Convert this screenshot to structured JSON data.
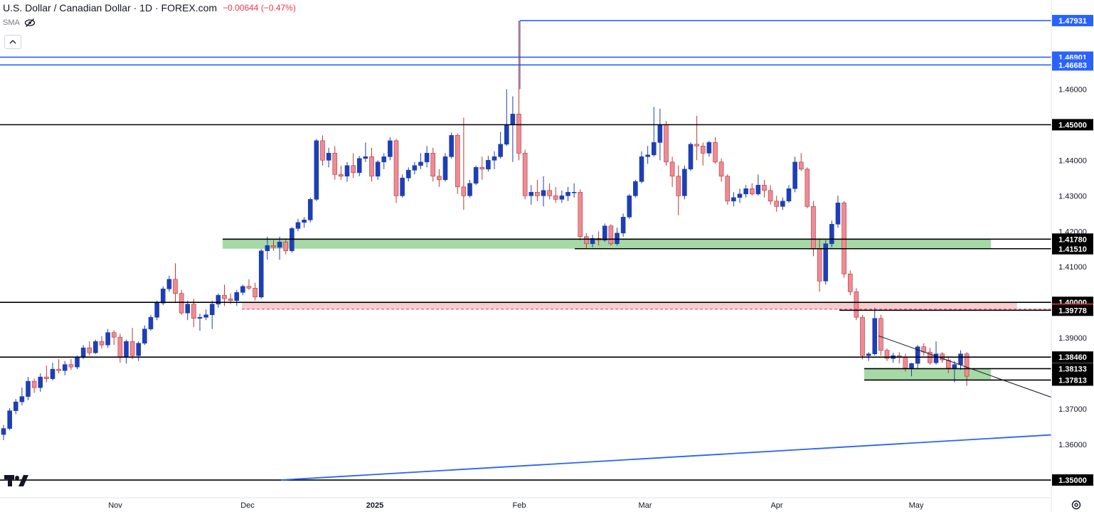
{
  "header": {
    "title": "U.S. Dollar / Canadian Dollar · 1D · FOREX.com",
    "change": "−0.00644 (−0.47%)",
    "indicator": "SMA",
    "collapse_icon": "chevron-up-icon",
    "eye_icon": "eye-off-icon"
  },
  "colors": {
    "up": "#1e3fb4",
    "down": "#f08a93",
    "support_zone": "#7fc97f",
    "resistance_zone": "#f4a4aa",
    "level_blue": "#2962ff",
    "level_black": "#000000",
    "label_red": "#f23645"
  },
  "chart_data": {
    "type": "candlestick",
    "symbol": "USDCAD",
    "timeframe": "1D",
    "ylim": [
      1.345,
      1.4815
    ],
    "x_tick_labels": [
      "Nov",
      "Dec",
      "2025",
      "Feb",
      "Mar",
      "Apr",
      "May"
    ],
    "y_tick_labels": [
      "1.46000",
      "1.44000",
      "1.43000",
      "1.42000",
      "1.41000",
      "1.39000",
      "1.37000",
      "1.36000"
    ],
    "y_ticks": [
      1.46,
      1.44,
      1.43,
      1.42,
      1.41,
      1.39,
      1.37,
      1.36
    ],
    "horizontal_levels": [
      {
        "label": "1.47931",
        "value": 1.47931,
        "color": "blue",
        "line": "solid"
      },
      {
        "label": "1.46901",
        "value": 1.46901,
        "color": "blue",
        "line": "solid"
      },
      {
        "label": "1.46683",
        "value": 1.46683,
        "color": "blue",
        "line": "solid"
      },
      {
        "label": "1.45000",
        "value": 1.45,
        "color": "black",
        "line": "solid"
      },
      {
        "label": "1.41780",
        "value": 1.4178,
        "color": "black",
        "line": "solid"
      },
      {
        "label": "1.41510",
        "value": 1.4151,
        "color": "black",
        "line": "solid"
      },
      {
        "label": "1.40000",
        "value": 1.4,
        "color": "black",
        "line": "solid"
      },
      {
        "label": "1.39808",
        "value": 1.39808,
        "color": "red",
        "line": "dashed"
      },
      {
        "label": "1.39778",
        "value": 1.39778,
        "color": "black",
        "line": "solid"
      },
      {
        "label": "1.38460",
        "value": 1.3846,
        "color": "black",
        "line": "solid"
      },
      {
        "label": "1.38133",
        "value": 1.38133,
        "color": "black",
        "line": "solid"
      },
      {
        "label": "1.37813",
        "value": 1.37813,
        "color": "black",
        "line": "solid"
      },
      {
        "label": "1.35000",
        "value": 1.35,
        "color": "black",
        "line": "solid"
      }
    ],
    "zones": [
      {
        "from": 1.4151,
        "to": 1.4178,
        "color": "green",
        "start": "late Nov",
        "end": "May"
      },
      {
        "from": 1.39808,
        "to": 1.4,
        "color": "red",
        "start": "late Nov",
        "end": "May"
      },
      {
        "from": 1.37813,
        "to": 1.38133,
        "color": "green",
        "start": "late Apr",
        "end": "May"
      }
    ],
    "trendlines": [
      {
        "name": "rising support",
        "color": "blue",
        "from": {
          "date": "Dec",
          "price": 1.35
        },
        "to": {
          "date": "May+",
          "price": 1.3627
        }
      },
      {
        "name": "falling wedge top",
        "color": "black",
        "from": {
          "date": "late Apr",
          "price": 1.3906
        },
        "to": {
          "date": "May+",
          "price": 1.3733
        }
      }
    ],
    "candles": [
      [
        1.3628,
        1.3655,
        1.3612,
        1.3645
      ],
      [
        1.3645,
        1.3702,
        1.364,
        1.3695
      ],
      [
        1.3695,
        1.3728,
        1.3685,
        1.372
      ],
      [
        1.372,
        1.376,
        1.371,
        1.3735
      ],
      [
        1.3735,
        1.379,
        1.3725,
        1.3778
      ],
      [
        1.3778,
        1.3785,
        1.3745,
        1.376
      ],
      [
        1.376,
        1.38,
        1.3748,
        1.379
      ],
      [
        1.379,
        1.3822,
        1.3775,
        1.3785
      ],
      [
        1.3785,
        1.383,
        1.378,
        1.3812
      ],
      [
        1.3812,
        1.384,
        1.38,
        1.3808
      ],
      [
        1.3808,
        1.3835,
        1.3795,
        1.3825
      ],
      [
        1.3825,
        1.384,
        1.381,
        1.3818
      ],
      [
        1.3818,
        1.385,
        1.3812,
        1.3845
      ],
      [
        1.3845,
        1.388,
        1.384,
        1.3872
      ],
      [
        1.3872,
        1.389,
        1.385,
        1.3858
      ],
      [
        1.3858,
        1.3895,
        1.3855,
        1.389
      ],
      [
        1.389,
        1.3905,
        1.387,
        1.388
      ],
      [
        1.388,
        1.3925,
        1.3872,
        1.3915
      ],
      [
        1.3915,
        1.3922,
        1.388,
        1.3902
      ],
      [
        1.3902,
        1.3912,
        1.383,
        1.3845
      ],
      [
        1.3845,
        1.3895,
        1.3828,
        1.389
      ],
      [
        1.389,
        1.3928,
        1.384,
        1.385
      ],
      [
        1.385,
        1.389,
        1.3835,
        1.3885
      ],
      [
        1.3885,
        1.3935,
        1.388,
        1.3925
      ],
      [
        1.3925,
        1.3965,
        1.392,
        1.3958
      ],
      [
        1.3958,
        1.4005,
        1.395,
        1.3998
      ],
      [
        1.3998,
        1.4045,
        1.3992,
        1.4038
      ],
      [
        1.4038,
        1.4075,
        1.403,
        1.4065
      ],
      [
        1.4065,
        1.411,
        1.4,
        1.4025
      ],
      [
        1.4025,
        1.4035,
        1.3965,
        1.397
      ],
      [
        1.397,
        1.4005,
        1.395,
        1.3995
      ],
      [
        1.3995,
        1.401,
        1.393,
        1.3955
      ],
      [
        1.3955,
        1.3968,
        1.392,
        1.3958
      ],
      [
        1.3958,
        1.398,
        1.395,
        1.3965
      ],
      [
        1.3965,
        1.4005,
        1.3925,
        1.3995
      ],
      [
        1.3995,
        1.4025,
        1.3985,
        1.402
      ],
      [
        1.402,
        1.405,
        1.399,
        1.401
      ],
      [
        1.401,
        1.4025,
        1.3995,
        1.4005
      ],
      [
        1.4005,
        1.4035,
        1.399,
        1.4028
      ],
      [
        1.4028,
        1.405,
        1.402,
        1.4045
      ],
      [
        1.4045,
        1.4065,
        1.4035,
        1.404
      ],
      [
        1.404,
        1.4055,
        1.4005,
        1.4015
      ],
      [
        1.4015,
        1.415,
        1.401,
        1.4145
      ],
      [
        1.4145,
        1.4185,
        1.412,
        1.416
      ],
      [
        1.416,
        1.4175,
        1.4145,
        1.4155
      ],
      [
        1.4155,
        1.4185,
        1.412,
        1.417
      ],
      [
        1.417,
        1.418,
        1.4135,
        1.4145
      ],
      [
        1.4145,
        1.4212,
        1.414,
        1.4208
      ],
      [
        1.4208,
        1.4235,
        1.42,
        1.4225
      ],
      [
        1.4225,
        1.424,
        1.421,
        1.4232
      ],
      [
        1.4232,
        1.4295,
        1.4225,
        1.429
      ],
      [
        1.429,
        1.446,
        1.4285,
        1.4455
      ],
      [
        1.4455,
        1.447,
        1.4385,
        1.44
      ],
      [
        1.44,
        1.4435,
        1.438,
        1.442
      ],
      [
        1.442,
        1.444,
        1.4345,
        1.436
      ],
      [
        1.436,
        1.4385,
        1.4345,
        1.4355
      ],
      [
        1.4355,
        1.4395,
        1.434,
        1.4385
      ],
      [
        1.4385,
        1.442,
        1.435,
        1.4365
      ],
      [
        1.4365,
        1.4412,
        1.4355,
        1.4405
      ],
      [
        1.4405,
        1.445,
        1.4395,
        1.441
      ],
      [
        1.441,
        1.4435,
        1.434,
        1.4355
      ],
      [
        1.4355,
        1.44,
        1.4345,
        1.4395
      ],
      [
        1.4395,
        1.442,
        1.4375,
        1.441
      ],
      [
        1.441,
        1.4465,
        1.44,
        1.4455
      ],
      [
        1.4455,
        1.446,
        1.428,
        1.43
      ],
      [
        1.43,
        1.436,
        1.4295,
        1.435
      ],
      [
        1.435,
        1.438,
        1.434,
        1.4372
      ],
      [
        1.4372,
        1.4395,
        1.436,
        1.4385
      ],
      [
        1.4385,
        1.442,
        1.4375,
        1.4395
      ],
      [
        1.4395,
        1.444,
        1.438,
        1.442
      ],
      [
        1.442,
        1.4435,
        1.434,
        1.4355
      ],
      [
        1.4355,
        1.4375,
        1.4325,
        1.4345
      ],
      [
        1.4345,
        1.442,
        1.434,
        1.441
      ],
      [
        1.441,
        1.4478,
        1.4405,
        1.447
      ],
      [
        1.447,
        1.4475,
        1.4305,
        1.4325
      ],
      [
        1.4325,
        1.452,
        1.426,
        1.43
      ],
      [
        1.43,
        1.4345,
        1.4295,
        1.4335
      ],
      [
        1.4335,
        1.4385,
        1.433,
        1.438
      ],
      [
        1.438,
        1.441,
        1.4345,
        1.4375
      ],
      [
        1.4375,
        1.4412,
        1.4368,
        1.44
      ],
      [
        1.44,
        1.4425,
        1.4375,
        1.441
      ],
      [
        1.441,
        1.448,
        1.4405,
        1.4445
      ],
      [
        1.4445,
        1.46,
        1.444,
        1.45
      ],
      [
        1.45,
        1.458,
        1.4395,
        1.453
      ],
      [
        1.453,
        1.4793,
        1.44,
        1.442
      ],
      [
        1.442,
        1.443,
        1.429,
        1.43
      ],
      [
        1.43,
        1.433,
        1.4275,
        1.431
      ],
      [
        1.431,
        1.4345,
        1.4285,
        1.43
      ],
      [
        1.43,
        1.4355,
        1.427,
        1.4315
      ],
      [
        1.4315,
        1.4335,
        1.429,
        1.43
      ],
      [
        1.43,
        1.4325,
        1.428,
        1.429
      ],
      [
        1.429,
        1.4315,
        1.428,
        1.43
      ],
      [
        1.43,
        1.4325,
        1.4285,
        1.431
      ],
      [
        1.431,
        1.4335,
        1.4295,
        1.431
      ],
      [
        1.431,
        1.4318,
        1.4175,
        1.4185
      ],
      [
        1.4185,
        1.4195,
        1.415,
        1.4165
      ],
      [
        1.4165,
        1.419,
        1.4155,
        1.418
      ],
      [
        1.418,
        1.42,
        1.416,
        1.4175
      ],
      [
        1.4175,
        1.4222,
        1.417,
        1.4215
      ],
      [
        1.4215,
        1.422,
        1.416,
        1.4165
      ],
      [
        1.4165,
        1.421,
        1.416,
        1.4195
      ],
      [
        1.4195,
        1.425,
        1.4185,
        1.424
      ],
      [
        1.424,
        1.4305,
        1.4235,
        1.43
      ],
      [
        1.43,
        1.4345,
        1.4295,
        1.434
      ],
      [
        1.434,
        1.4425,
        1.4335,
        1.441
      ],
      [
        1.441,
        1.444,
        1.439,
        1.4415
      ],
      [
        1.4415,
        1.455,
        1.441,
        1.445
      ],
      [
        1.445,
        1.4545,
        1.44,
        1.45
      ],
      [
        1.45,
        1.451,
        1.4385,
        1.4395
      ],
      [
        1.4395,
        1.441,
        1.4325,
        1.4355
      ],
      [
        1.4355,
        1.4385,
        1.4245,
        1.43
      ],
      [
        1.43,
        1.4385,
        1.429,
        1.4375
      ],
      [
        1.4375,
        1.445,
        1.437,
        1.4445
      ],
      [
        1.4445,
        1.4525,
        1.44,
        1.444
      ],
      [
        1.444,
        1.445,
        1.4385,
        1.442
      ],
      [
        1.442,
        1.4455,
        1.441,
        1.445
      ],
      [
        1.445,
        1.4465,
        1.439,
        1.4395
      ],
      [
        1.4395,
        1.4405,
        1.434,
        1.4355
      ],
      [
        1.4355,
        1.436,
        1.4275,
        1.4285
      ],
      [
        1.4285,
        1.431,
        1.427,
        1.4295
      ],
      [
        1.4295,
        1.432,
        1.428,
        1.4305
      ],
      [
        1.4305,
        1.433,
        1.4295,
        1.432
      ],
      [
        1.432,
        1.4335,
        1.43,
        1.4305
      ],
      [
        1.4305,
        1.436,
        1.43,
        1.433
      ],
      [
        1.433,
        1.4345,
        1.4295,
        1.4315
      ],
      [
        1.4315,
        1.433,
        1.4275,
        1.4285
      ],
      [
        1.4285,
        1.43,
        1.4255,
        1.427
      ],
      [
        1.427,
        1.4295,
        1.426,
        1.4285
      ],
      [
        1.4285,
        1.433,
        1.428,
        1.432
      ],
      [
        1.432,
        1.441,
        1.431,
        1.4395
      ],
      [
        1.4395,
        1.442,
        1.437,
        1.4375
      ],
      [
        1.4375,
        1.438,
        1.4265,
        1.427
      ],
      [
        1.427,
        1.4285,
        1.413,
        1.415
      ],
      [
        1.415,
        1.418,
        1.403,
        1.406
      ],
      [
        1.406,
        1.4175,
        1.405,
        1.4165
      ],
      [
        1.4165,
        1.423,
        1.4155,
        1.422
      ],
      [
        1.422,
        1.43,
        1.421,
        1.428
      ],
      [
        1.428,
        1.4285,
        1.407,
        1.408
      ],
      [
        1.408,
        1.409,
        1.402,
        1.403
      ],
      [
        1.403,
        1.404,
        1.395,
        1.3958
      ],
      [
        1.3958,
        1.3965,
        1.384,
        1.385
      ],
      [
        1.385,
        1.386,
        1.3835,
        1.3855
      ],
      [
        1.3855,
        1.3985,
        1.385,
        1.3955
      ],
      [
        1.3955,
        1.3965,
        1.385,
        1.3865
      ],
      [
        1.3865,
        1.387,
        1.3835,
        1.3842
      ],
      [
        1.3842,
        1.3858,
        1.383,
        1.385
      ],
      [
        1.385,
        1.386,
        1.3828,
        1.3845
      ],
      [
        1.3845,
        1.3855,
        1.3805,
        1.3815
      ],
      [
        1.3815,
        1.383,
        1.3792,
        1.3828
      ],
      [
        1.3828,
        1.388,
        1.3815,
        1.3875
      ],
      [
        1.3875,
        1.3885,
        1.385,
        1.386
      ],
      [
        1.386,
        1.3872,
        1.3825,
        1.383
      ],
      [
        1.383,
        1.389,
        1.3825,
        1.3855
      ],
      [
        1.3855,
        1.386,
        1.383,
        1.3838
      ],
      [
        1.3838,
        1.3848,
        1.38,
        1.3815
      ],
      [
        1.3815,
        1.3835,
        1.3775,
        1.3825
      ],
      [
        1.3825,
        1.3865,
        1.381,
        1.3855
      ],
      [
        1.3855,
        1.386,
        1.3765,
        1.3792
      ]
    ]
  }
}
